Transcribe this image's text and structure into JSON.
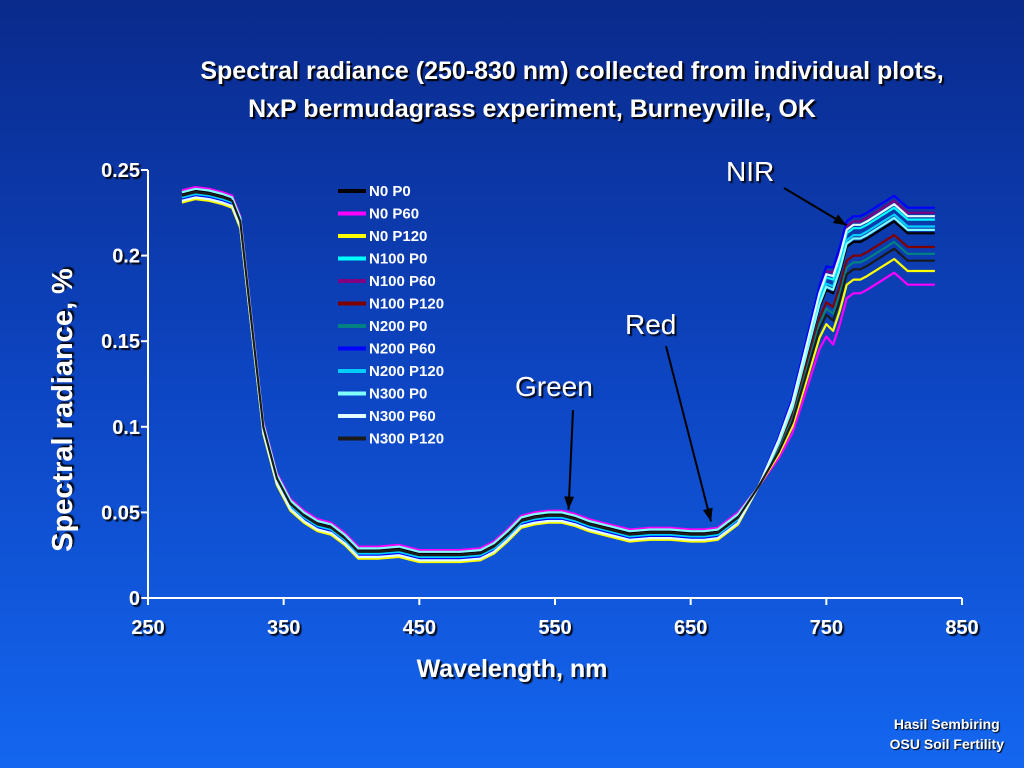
{
  "title": {
    "line1": "Spectral radiance (250-830 nm) collected from individual plots,",
    "line2": "NxP bermudagrass experiment,  Burneyville, OK"
  },
  "credit": {
    "line1": "Hasil Sembiring",
    "line2": "OSU Soil Fertility"
  },
  "colors": {
    "background_top": "#0a2a8c",
    "background_bottom": "#1466f0",
    "axis": "#ffffff"
  },
  "chart_data": {
    "type": "line",
    "xlabel": "Wavelength, nm",
    "ylabel": "Spectral radiance, %",
    "xlim": [
      250,
      850
    ],
    "ylim": [
      0,
      0.25
    ],
    "xticks": [
      "250",
      "350",
      "450",
      "550",
      "650",
      "750",
      "850"
    ],
    "yticks": [
      "0",
      "0.05",
      "0.1",
      "0.15",
      "0.2",
      "0.25"
    ],
    "legend_position": "top-center",
    "grid": false,
    "x": [
      275,
      285,
      295,
      305,
      312,
      318,
      325,
      335,
      345,
      355,
      365,
      375,
      385,
      395,
      405,
      420,
      435,
      450,
      465,
      480,
      495,
      505,
      515,
      525,
      535,
      545,
      555,
      565,
      575,
      590,
      605,
      620,
      635,
      650,
      660,
      670,
      685,
      700,
      715,
      725,
      735,
      745,
      750,
      755,
      760,
      765,
      770,
      775,
      780,
      790,
      800,
      810,
      820,
      830
    ],
    "base": [
      0.235,
      0.237,
      0.236,
      0.234,
      0.232,
      0.22,
      0.17,
      0.1,
      0.07,
      0.055,
      0.048,
      0.043,
      0.041,
      0.035,
      0.027,
      0.027,
      0.028,
      0.025,
      0.025,
      0.025,
      0.026,
      0.03,
      0.037,
      0.045,
      0.047,
      0.048,
      0.048,
      0.046,
      0.043,
      0.04,
      0.037,
      0.038,
      0.038,
      0.037,
      0.037,
      0.038,
      0.047,
      0.065,
      0.09,
      0.11,
      0.14,
      0.17,
      0.18,
      0.178,
      0.19,
      0.205,
      0.208,
      0.208,
      0.21,
      0.215,
      0.22,
      0.213,
      0.213,
      0.213
    ],
    "series": [
      {
        "name": "N0 P0",
        "color": "#000000",
        "vis_offset": 0.001,
        "nir_offset": 0.0
      },
      {
        "name": "N0 P60",
        "color": "#ff00ff",
        "vis_offset": 0.003,
        "nir_offset": -0.03
      },
      {
        "name": "N0 P120",
        "color": "#ffff00",
        "vis_offset": -0.004,
        "nir_offset": -0.022
      },
      {
        "name": "N100 P0",
        "color": "#00ffff",
        "vis_offset": 0.0,
        "nir_offset": 0.008
      },
      {
        "name": "N100 P60",
        "color": "#800080",
        "vis_offset": 0.002,
        "nir_offset": 0.012
      },
      {
        "name": "N100 P120",
        "color": "#800000",
        "vis_offset": 0.0,
        "nir_offset": -0.008
      },
      {
        "name": "N200 P0",
        "color": "#008080",
        "vis_offset": -0.001,
        "nir_offset": -0.012
      },
      {
        "name": "N200 P60",
        "color": "#0000ff",
        "vis_offset": -0.002,
        "nir_offset": 0.015
      },
      {
        "name": "N200 P120",
        "color": "#00ccff",
        "vis_offset": -0.001,
        "nir_offset": 0.004
      },
      {
        "name": "N300 P0",
        "color": "#7fffff",
        "vis_offset": 0.002,
        "nir_offset": 0.002
      },
      {
        "name": "N300 P60",
        "color": "#e0ffff",
        "vis_offset": -0.003,
        "nir_offset": 0.01
      },
      {
        "name": "N300 P120",
        "color": "#1a1a1a",
        "vis_offset": 0.0,
        "nir_offset": -0.016
      }
    ],
    "annotations": [
      {
        "label": "Green",
        "x": 560,
        "y": 0.047
      },
      {
        "label": "Red",
        "x": 665,
        "y": 0.04
      },
      {
        "label": "NIR",
        "x": 765,
        "y": 0.213
      }
    ]
  }
}
